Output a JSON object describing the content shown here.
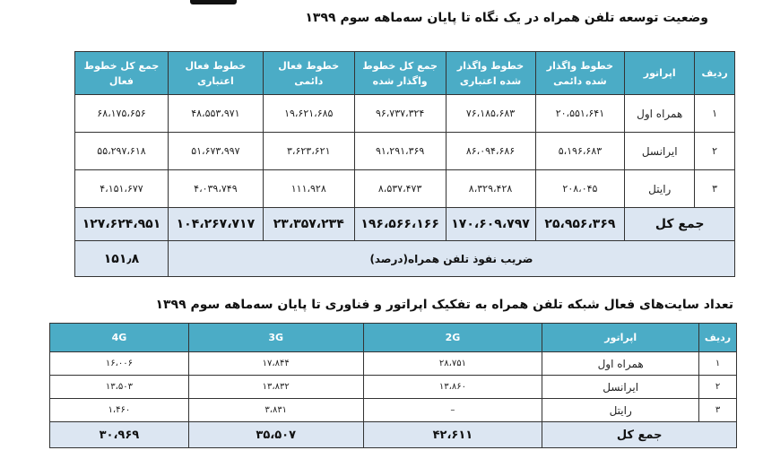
{
  "table1": {
    "title": "وضعیت توسعه تلفن همراه در یک نگاه تا پایان سه‌ماهه سوم ۱۳۹۹",
    "headers": [
      "ردیف",
      "اپراتور",
      "خطوط واگذار شده دائمی",
      "خطوط واگذار شده اعتباری",
      "جمع کل خطوط واگذار شده",
      "خطوط فعال دائمی",
      "خطوط فعال اعتباری",
      "جمع کل خطوط فعال"
    ],
    "rows": [
      [
        "۱",
        "همراه اول",
        "۲۰،۵۵۱،۶۴۱",
        "۷۶،۱۸۵،۶۸۳",
        "۹۶،۷۳۷،۳۲۴",
        "۱۹،۶۲۱،۶۸۵",
        "۴۸،۵۵۳،۹۷۱",
        "۶۸،۱۷۵،۶۵۶"
      ],
      [
        "۲",
        "ایرانسل",
        "۵،۱۹۶،۶۸۳",
        "۸۶،۰۹۴،۶۸۶",
        "۹۱،۲۹۱،۳۶۹",
        "۳،۶۲۳،۶۲۱",
        "۵۱،۶۷۳،۹۹۷",
        "۵۵،۲۹۷،۶۱۸"
      ],
      [
        "۳",
        "رایتل",
        "۲۰۸،۰۴۵",
        "۸،۳۲۹،۴۲۸",
        "۸،۵۳۷،۴۷۳",
        "۱۱۱،۹۲۸",
        "۴،۰۳۹،۷۴۹",
        "۴،۱۵۱،۶۷۷"
      ]
    ],
    "total": [
      "جمع کل",
      "۲۵،۹۵۶،۳۶۹",
      "۱۷۰،۶۰۹،۷۹۷",
      "۱۹۶،۵۶۶،۱۶۶",
      "۲۳،۳۵۷،۲۳۴",
      "۱۰۴،۲۶۷،۷۱۷",
      "۱۲۷،۶۲۴،۹۵۱"
    ],
    "penetration_label": "ضریب نفوذ تلفن همراه(درصد)",
    "penetration_value": "۱۵۱٫۸"
  },
  "table2": {
    "title": "تعداد سایت‌های فعال شبکه تلفن همراه به تفکیک اپراتور و فناوری تا پایان سه‌ماهه سوم ۱۳۹۹",
    "headers": [
      "ردیف",
      "اپراتور",
      "2G",
      "3G",
      "4G"
    ],
    "rows": [
      [
        "۱",
        "همراه اول",
        "۲۸،۷۵۱",
        "۱۷،۸۴۴",
        "۱۶،۰۰۶"
      ],
      [
        "۲",
        "ایرانسل",
        "۱۳،۸۶۰",
        "۱۳،۸۳۲",
        "۱۳،۵۰۳"
      ],
      [
        "۳",
        "رایتل",
        "–",
        "۳،۸۳۱",
        "۱،۴۶۰"
      ]
    ],
    "total": [
      "جمع کل",
      "۴۲،۶۱۱",
      "۳۵،۵۰۷",
      "۳۰،۹۶۹"
    ]
  },
  "colors": {
    "header": "#4bacc6",
    "total_row": "#dce6f2"
  }
}
